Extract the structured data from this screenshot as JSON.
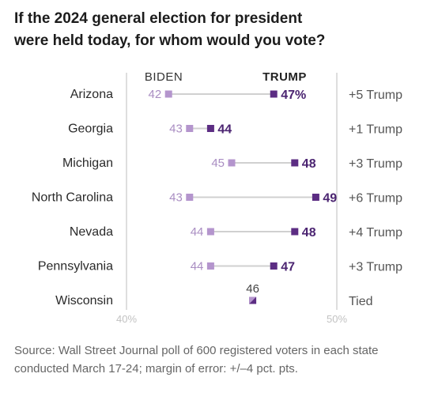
{
  "title": {
    "line1": "If the 2024 general election for president",
    "line2": "were held today, for whom would you vote?"
  },
  "source": "Source: Wall Street Journal poll of 600 registered voters in each state conducted March 17-24; margin of error: +/–4 pct. pts.",
  "chart_data": {
    "type": "dot-range",
    "xlim": [
      40,
      50
    ],
    "x_tick_labels": [
      "40%",
      "50%"
    ],
    "series_labels": {
      "biden": "BIDEN",
      "trump": "TRUMP"
    },
    "colors": {
      "biden": "#b495cd",
      "trump": "#5c2d83",
      "line": "#d0d0d0",
      "axis": "#c8c8c8",
      "biden_text": "#a98dc2",
      "trump_text": "#4b2471"
    },
    "rows": [
      {
        "state": "Arizona",
        "biden": 42,
        "trump": 47,
        "biden_label": "42",
        "trump_label": "47%",
        "margin": "+5 Trump"
      },
      {
        "state": "Georgia",
        "biden": 43,
        "trump": 44,
        "biden_label": "43",
        "trump_label": "44",
        "margin": "+1 Trump"
      },
      {
        "state": "Michigan",
        "biden": 45,
        "trump": 48,
        "biden_label": "45",
        "trump_label": "48",
        "margin": "+3 Trump"
      },
      {
        "state": "North Carolina",
        "biden": 43,
        "trump": 49,
        "biden_label": "43",
        "trump_label": "49",
        "margin": "+6 Trump"
      },
      {
        "state": "Nevada",
        "biden": 44,
        "trump": 48,
        "biden_label": "44",
        "trump_label": "48",
        "margin": "+4 Trump"
      },
      {
        "state": "Pennsylvania",
        "biden": 44,
        "trump": 47,
        "biden_label": "44",
        "trump_label": "47",
        "margin": "+3 Trump"
      },
      {
        "state": "Wisconsin",
        "biden": 46,
        "trump": 46,
        "tie_label": "46",
        "margin": "Tied"
      }
    ]
  }
}
